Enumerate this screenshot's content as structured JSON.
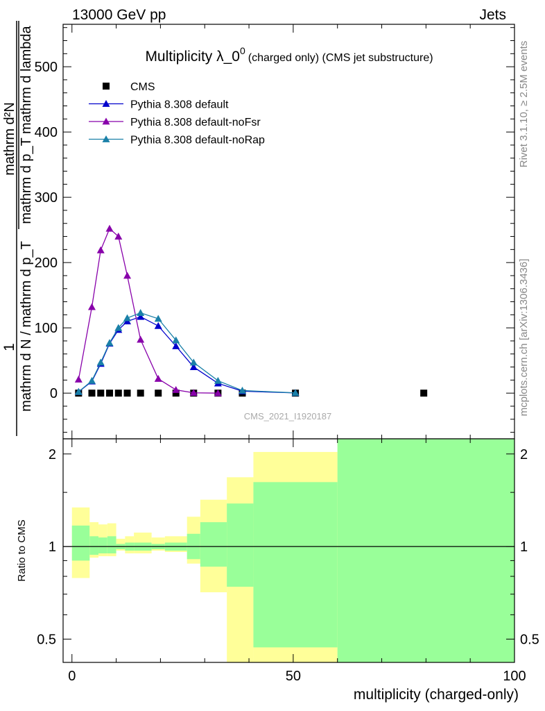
{
  "header": {
    "left": "13000 GeV pp",
    "right": "Jets"
  },
  "side_labels": {
    "rivet": "Rivet 3.1.10, ≥ 2.5M events",
    "mcplots": "mcplots.cern.ch [arXiv:1306.3436]"
  },
  "chart_data": [
    {
      "type": "line",
      "title_main": "Multiplicity λ_0",
      "title_superscript": "0",
      "title_suffix": "(charged only) (CMS jet substructure)",
      "watermark": "CMS_2021_I1920187",
      "ylabel": {
        "numerator": "mathrm d²N",
        "denominator": "mathrm d p_T mathrm d lambda",
        "prefix": "1",
        "prefix_den": "mathrm d N / mathrm d p_T"
      },
      "xlim": [
        -2,
        100
      ],
      "ylim": [
        -70,
        565
      ],
      "yticks": [
        0,
        100,
        200,
        300,
        400,
        500
      ],
      "ytick_labels": [
        "0",
        "100",
        "200",
        "300",
        "400",
        "500"
      ],
      "legend_position": "top-left",
      "series": [
        {
          "name": "CMS",
          "marker": "square",
          "color": "#000000",
          "x": [
            1.5,
            4.5,
            6.5,
            8.5,
            10.5,
            12.5,
            15.5,
            19.5,
            23.5,
            27.5,
            33,
            38.5,
            50.5,
            79.5
          ],
          "y": [
            0,
            0,
            0,
            0,
            0,
            0,
            0,
            0,
            0,
            0,
            0,
            0,
            0,
            0
          ]
        },
        {
          "name": "Pythia 8.308 default",
          "marker": "triangle",
          "color": "#0000cc",
          "x": [
            1.5,
            4.5,
            6.5,
            8.5,
            10.5,
            12.5,
            15.5,
            19.5,
            23.5,
            27.5,
            33,
            38.5,
            50.5
          ],
          "y": [
            2,
            18,
            45,
            76,
            97,
            110,
            117,
            103,
            72,
            40,
            15,
            3,
            0.3
          ]
        },
        {
          "name": "Pythia 8.308 default-noFsr",
          "marker": "triangle",
          "color": "#8800aa",
          "x": [
            1.5,
            4.5,
            6.5,
            8.5,
            10.5,
            12.5,
            15.5,
            19.5,
            23.5,
            27.5,
            33
          ],
          "y": [
            21,
            132,
            219,
            252,
            240,
            180,
            82,
            22,
            5,
            0.5,
            0
          ]
        },
        {
          "name": "Pythia 8.308 default-noRap",
          "marker": "triangle",
          "color": "#1a80a8",
          "x": [
            1.5,
            4.5,
            6.5,
            8.5,
            10.5,
            12.5,
            15.5,
            19.5,
            23.5,
            27.5,
            33,
            38.5,
            50.5
          ],
          "y": [
            2,
            19,
            47,
            77,
            100,
            115,
            123,
            114,
            81,
            47,
            19,
            4,
            0.4
          ]
        }
      ]
    },
    {
      "type": "area",
      "ylabel": "Ratio to CMS",
      "xlabel": "multiplicity (charged-only)",
      "xlim": [
        -2,
        100
      ],
      "ylim": [
        0.42,
        2.24
      ],
      "xticks": [
        0,
        50,
        100
      ],
      "xtick_labels": [
        "0",
        "50",
        "100"
      ],
      "yticks": [
        0.5,
        1,
        2
      ],
      "ytick_labels": [
        "0.5",
        "1",
        "2"
      ],
      "band_colors": {
        "stat": "#99ff99",
        "total": "#ffff99"
      },
      "bins": [
        {
          "lo": 0,
          "hi": 4,
          "stat": [
            0.9,
            1.17
          ],
          "total": [
            0.79,
            1.34
          ]
        },
        {
          "lo": 4,
          "hi": 6,
          "stat": [
            0.94,
            1.08
          ],
          "total": [
            0.92,
            1.2
          ]
        },
        {
          "lo": 6,
          "hi": 8,
          "stat": [
            0.95,
            1.07
          ],
          "total": [
            0.93,
            1.18
          ]
        },
        {
          "lo": 8,
          "hi": 10,
          "stat": [
            0.95,
            1.08
          ],
          "total": [
            0.93,
            1.19
          ]
        },
        {
          "lo": 10,
          "hi": 12,
          "stat": [
            0.98,
            1.02
          ],
          "total": [
            0.97,
            1.06
          ]
        },
        {
          "lo": 12,
          "hi": 14,
          "stat": [
            0.97,
            1.03
          ],
          "total": [
            0.95,
            1.08
          ]
        },
        {
          "lo": 14,
          "hi": 18,
          "stat": [
            0.97,
            1.03
          ],
          "total": [
            0.95,
            1.11
          ]
        },
        {
          "lo": 18,
          "hi": 21,
          "stat": [
            0.98,
            1.02
          ],
          "total": [
            0.97,
            1.07
          ]
        },
        {
          "lo": 21,
          "hi": 26,
          "stat": [
            0.97,
            1.03
          ],
          "total": [
            0.96,
            1.08
          ]
        },
        {
          "lo": 26,
          "hi": 29,
          "stat": [
            0.91,
            1.1
          ],
          "total": [
            0.88,
            1.25
          ]
        },
        {
          "lo": 29,
          "hi": 35,
          "stat": [
            0.86,
            1.2
          ],
          "total": [
            0.71,
            1.42
          ]
        },
        {
          "lo": 35,
          "hi": 41,
          "stat": [
            0.74,
            1.38
          ],
          "total": [
            0.42,
            1.68
          ]
        },
        {
          "lo": 41,
          "hi": 60,
          "stat": [
            0.47,
            1.62
          ],
          "total": [
            0.42,
            2.03
          ]
        },
        {
          "lo": 60,
          "hi": 100,
          "stat": [
            0.42,
            2.24
          ],
          "total": [
            0.42,
            2.24
          ]
        }
      ]
    }
  ]
}
